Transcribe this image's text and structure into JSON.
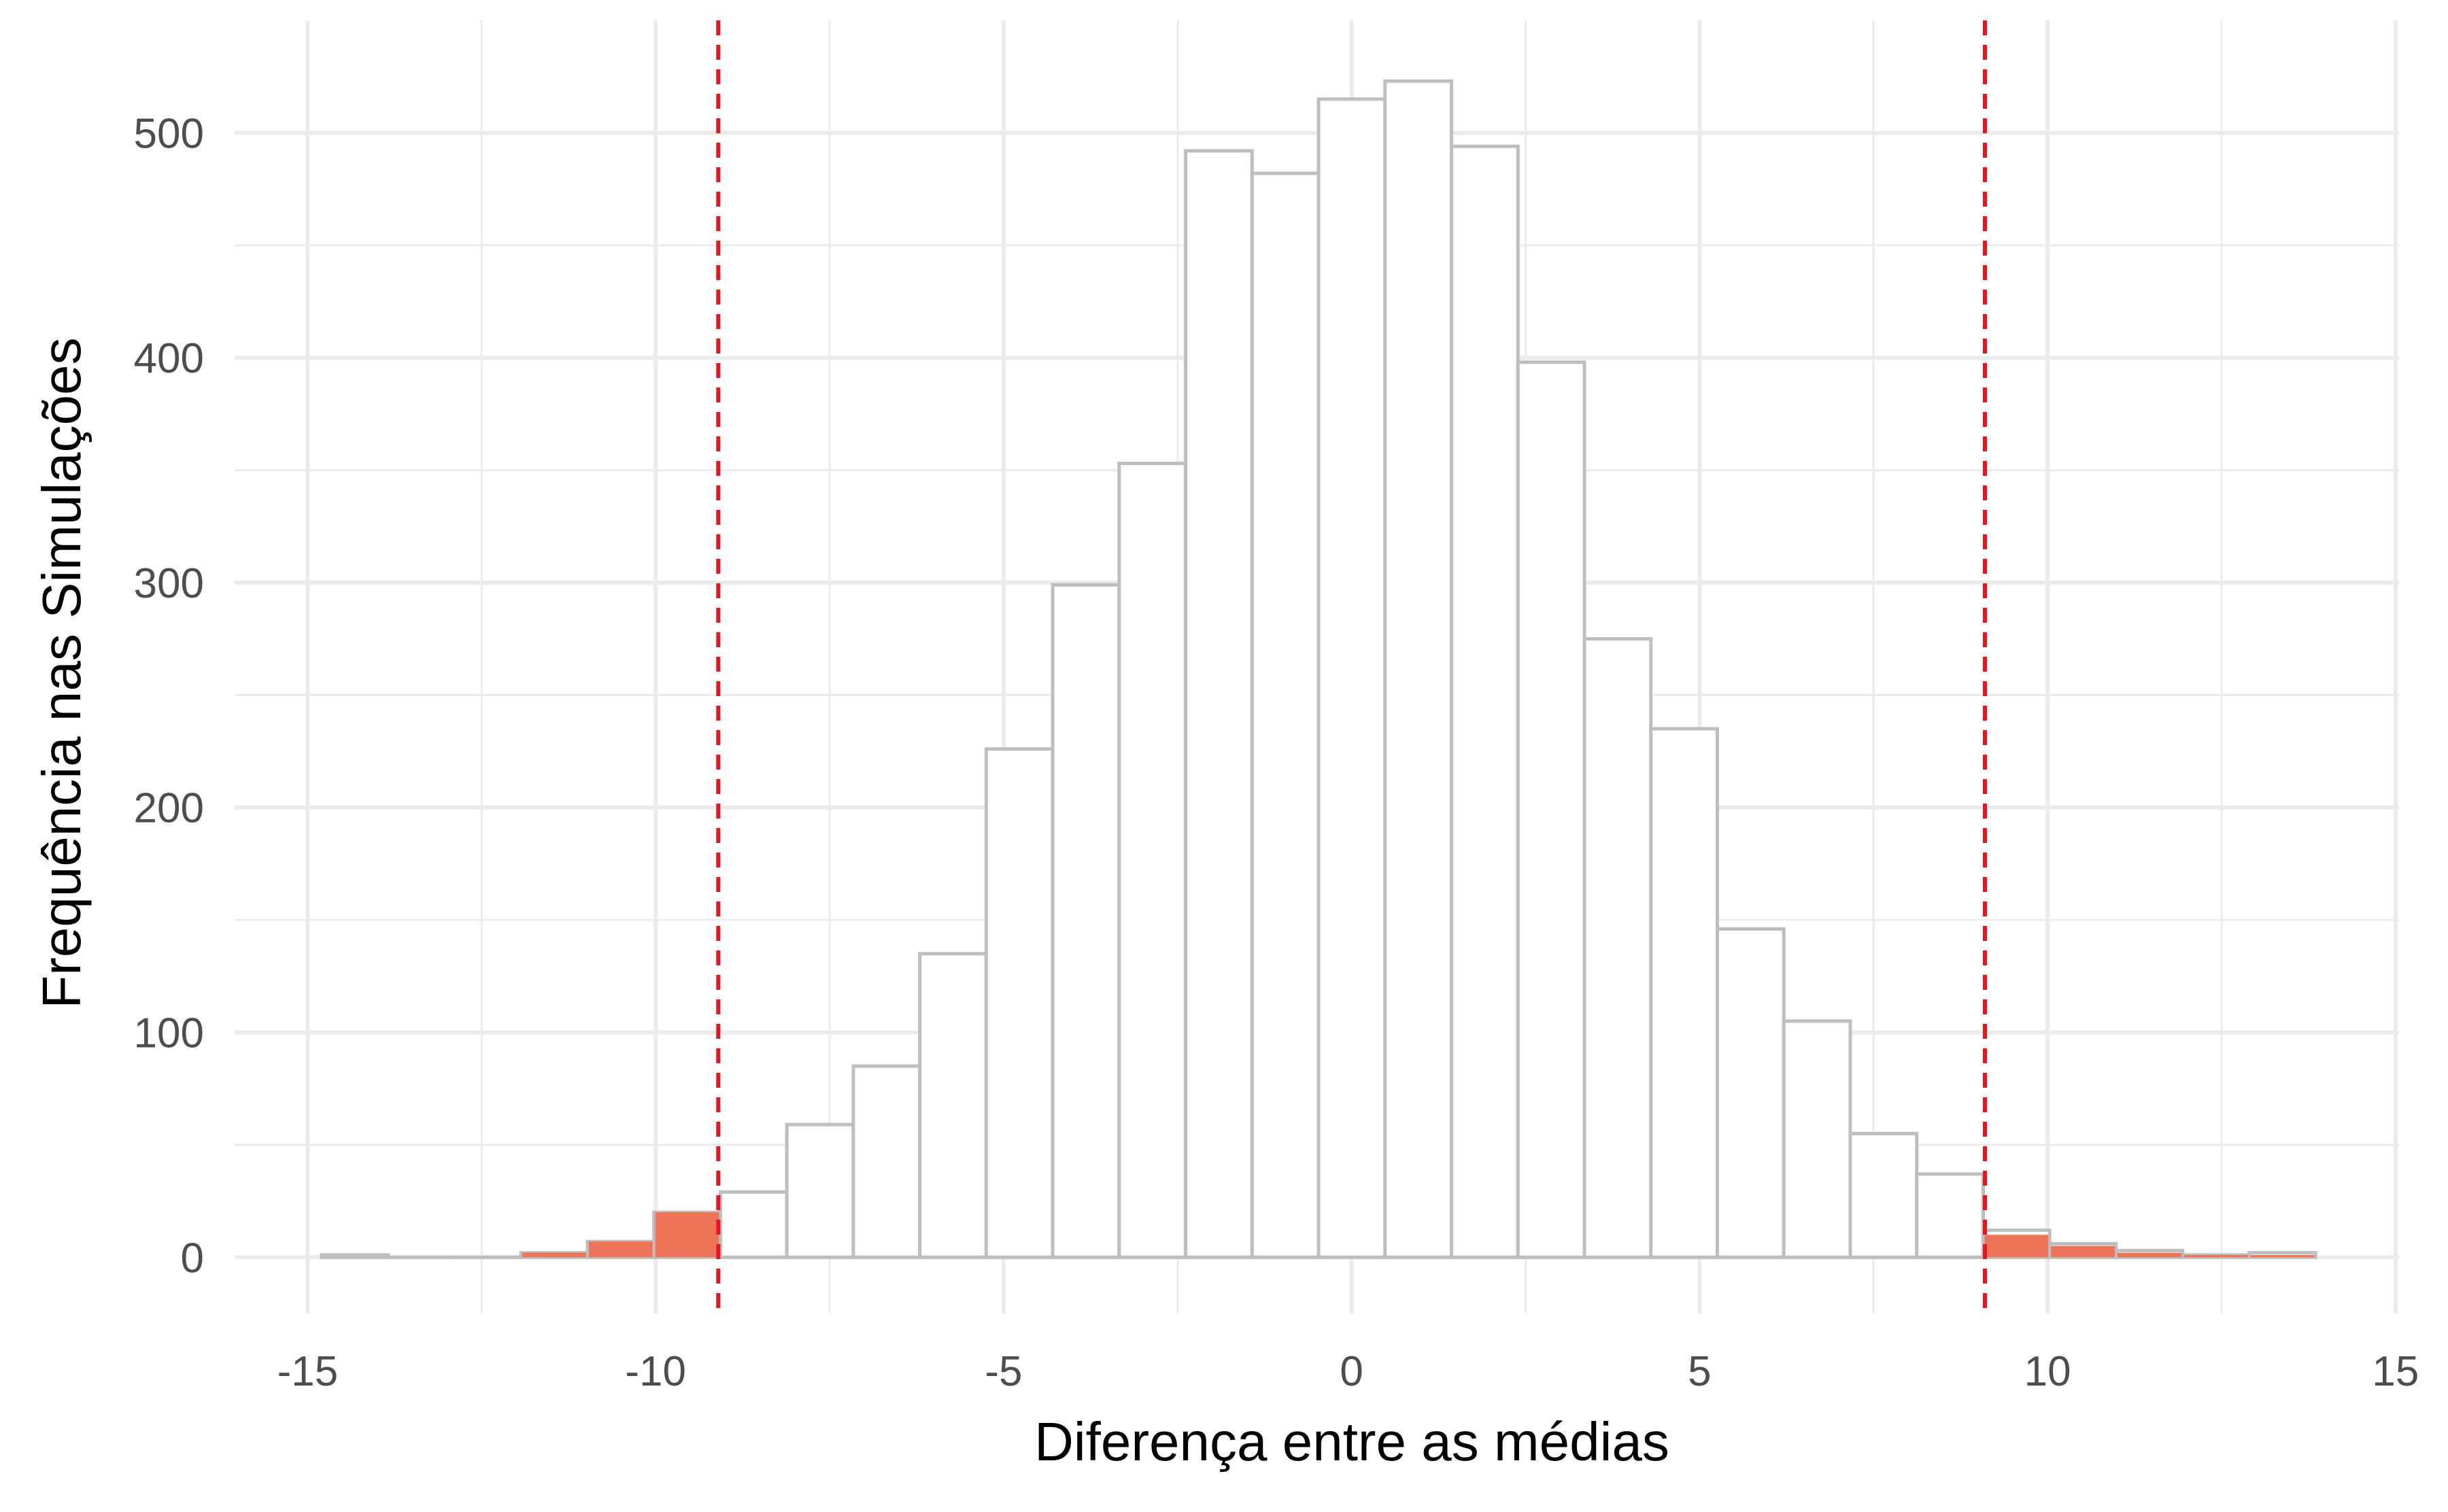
{
  "chart_data": {
    "type": "bar",
    "title": "",
    "xlabel": "Diferença entre as médias",
    "ylabel": "Frequência nas Simulações",
    "xlim": [
      -16.05,
      15.05
    ],
    "ylim": [
      -25,
      550
    ],
    "x_ticks": [
      -15,
      -10,
      -5,
      0,
      5,
      10,
      15
    ],
    "x_tick_labels": [
      "-15",
      "-10",
      "-5",
      "0",
      "5",
      "10",
      "15"
    ],
    "y_ticks": [
      0,
      100,
      200,
      300,
      400,
      500
    ],
    "y_tick_labels": [
      "0",
      "100",
      "200",
      "300",
      "400",
      "500"
    ],
    "grid": true,
    "bin_width": 0.955,
    "bins": [
      {
        "x0": -14.8,
        "x1": -13.845,
        "count": 1,
        "shaded": 0
      },
      {
        "x0": -13.845,
        "x1": -12.89,
        "count": 0,
        "shaded": 0
      },
      {
        "x0": -12.89,
        "x1": -11.935,
        "count": 0,
        "shaded": 0
      },
      {
        "x0": -11.935,
        "x1": -10.98,
        "count": 2,
        "shaded": 2
      },
      {
        "x0": -10.98,
        "x1": -10.025,
        "count": 7,
        "shaded": 7
      },
      {
        "x0": -10.025,
        "x1": -9.07,
        "count": 20,
        "shaded": 20
      },
      {
        "x0": -9.07,
        "x1": -8.115,
        "count": 29,
        "shaded": 0
      },
      {
        "x0": -8.115,
        "x1": -7.16,
        "count": 59,
        "shaded": 0
      },
      {
        "x0": -7.16,
        "x1": -6.205,
        "count": 85,
        "shaded": 0
      },
      {
        "x0": -6.205,
        "x1": -5.25,
        "count": 135,
        "shaded": 0
      },
      {
        "x0": -5.25,
        "x1": -4.295,
        "count": 226,
        "shaded": 0
      },
      {
        "x0": -4.295,
        "x1": -3.34,
        "count": 299,
        "shaded": 0
      },
      {
        "x0": -3.34,
        "x1": -2.385,
        "count": 353,
        "shaded": 0
      },
      {
        "x0": -2.385,
        "x1": -1.43,
        "count": 492,
        "shaded": 0
      },
      {
        "x0": -1.43,
        "x1": -0.475,
        "count": 482,
        "shaded": 0
      },
      {
        "x0": -0.475,
        "x1": 0.48,
        "count": 515,
        "shaded": 0
      },
      {
        "x0": 0.48,
        "x1": 1.435,
        "count": 523,
        "shaded": 0
      },
      {
        "x0": 1.435,
        "x1": 2.39,
        "count": 494,
        "shaded": 0
      },
      {
        "x0": 2.39,
        "x1": 3.345,
        "count": 398,
        "shaded": 0
      },
      {
        "x0": 3.345,
        "x1": 4.3,
        "count": 275,
        "shaded": 0
      },
      {
        "x0": 4.3,
        "x1": 5.255,
        "count": 235,
        "shaded": 0
      },
      {
        "x0": 5.255,
        "x1": 6.21,
        "count": 146,
        "shaded": 0
      },
      {
        "x0": 6.21,
        "x1": 7.165,
        "count": 105,
        "shaded": 0
      },
      {
        "x0": 7.165,
        "x1": 8.12,
        "count": 55,
        "shaded": 0
      },
      {
        "x0": 8.12,
        "x1": 9.075,
        "count": 37,
        "shaded": 0
      },
      {
        "x0": 9.075,
        "x1": 10.03,
        "count": 12,
        "shaded": 10
      },
      {
        "x0": 10.03,
        "x1": 10.985,
        "count": 6,
        "shaded": 5
      },
      {
        "x0": 10.985,
        "x1": 11.94,
        "count": 3,
        "shaded": 2
      },
      {
        "x0": 11.94,
        "x1": 12.895,
        "count": 1,
        "shaded": 1
      },
      {
        "x0": 12.895,
        "x1": 13.85,
        "count": 2,
        "shaded": 1
      }
    ],
    "critical_lines": [
      -9.1,
      9.1
    ],
    "colors": {
      "bar_fill": "#ffffff",
      "bar_outline": "#bebebe",
      "tail_fill": "#ee7459",
      "critical_line": "#e8141e",
      "grid": "#ebebeb",
      "tick_label": "#4d4d4d",
      "axis_title": "#000000"
    }
  }
}
